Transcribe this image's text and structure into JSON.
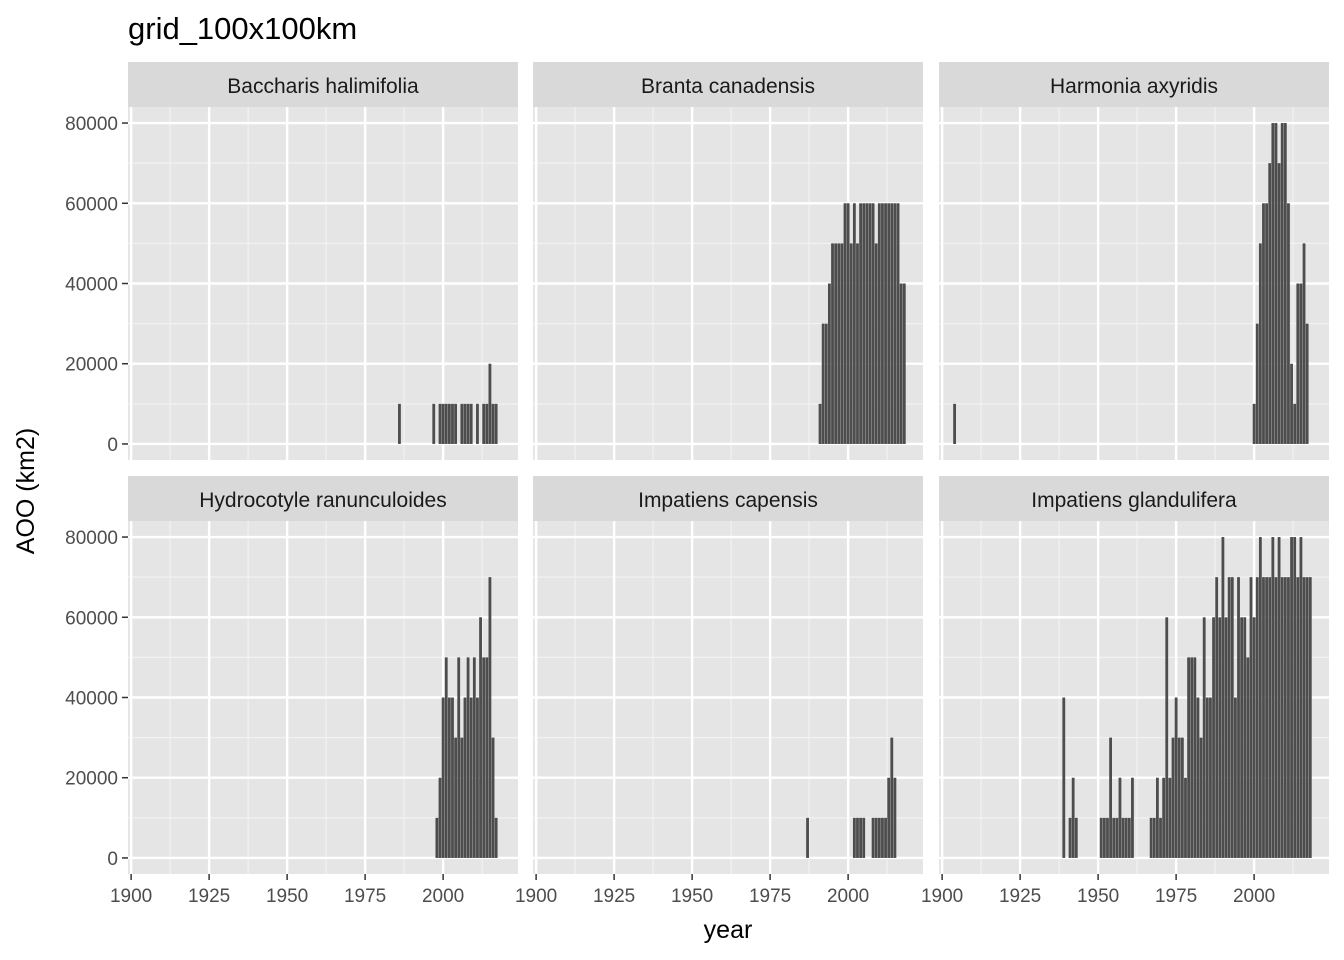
{
  "colors": {
    "panel_background": "#e5e5e5",
    "grid_major": "#ffffff",
    "grid_minor": "#f2f2f2",
    "strip_background": "#d9d9d9",
    "bar_fill": "#4d4d4d",
    "tick_color": "#333333"
  },
  "chart_data": {
    "type": "bar",
    "title": "grid_100x100km",
    "xlabel": "year",
    "ylabel": "AOO (km2)",
    "xlim": [
      1899,
      2024
    ],
    "ylim": [
      -4000,
      84000
    ],
    "x_ticks": [
      1900,
      1925,
      1950,
      1975,
      2000
    ],
    "y_ticks": [
      0,
      20000,
      40000,
      60000,
      80000
    ],
    "grid": true,
    "layout": "facet 2 rows x 3 columns",
    "panels": [
      {
        "name": "Baccharis halimifolia",
        "points": [
          [
            1986,
            10000
          ],
          [
            1997,
            10000
          ],
          [
            1999,
            10000
          ],
          [
            2000,
            10000
          ],
          [
            2001,
            10000
          ],
          [
            2002,
            10000
          ],
          [
            2003,
            10000
          ],
          [
            2004,
            10000
          ],
          [
            2006,
            10000
          ],
          [
            2007,
            10000
          ],
          [
            2008,
            10000
          ],
          [
            2009,
            10000
          ],
          [
            2011,
            10000
          ],
          [
            2013,
            10000
          ],
          [
            2014,
            10000
          ],
          [
            2015,
            20000
          ],
          [
            2016,
            10000
          ],
          [
            2017,
            10000
          ]
        ]
      },
      {
        "name": "Branta canadensis",
        "points": [
          [
            1991,
            10000
          ],
          [
            1992,
            30000
          ],
          [
            1993,
            30000
          ],
          [
            1994,
            40000
          ],
          [
            1995,
            50000
          ],
          [
            1996,
            50000
          ],
          [
            1997,
            50000
          ],
          [
            1998,
            50000
          ],
          [
            1999,
            60000
          ],
          [
            2000,
            60000
          ],
          [
            2001,
            50000
          ],
          [
            2002,
            60000
          ],
          [
            2003,
            50000
          ],
          [
            2004,
            60000
          ],
          [
            2005,
            60000
          ],
          [
            2006,
            60000
          ],
          [
            2007,
            60000
          ],
          [
            2008,
            60000
          ],
          [
            2009,
            50000
          ],
          [
            2010,
            60000
          ],
          [
            2011,
            60000
          ],
          [
            2012,
            60000
          ],
          [
            2013,
            60000
          ],
          [
            2014,
            60000
          ],
          [
            2015,
            60000
          ],
          [
            2016,
            60000
          ],
          [
            2017,
            40000
          ],
          [
            2018,
            40000
          ]
        ]
      },
      {
        "name": "Harmonia axyridis",
        "points": [
          [
            1904,
            10000
          ],
          [
            2000,
            10000
          ],
          [
            2001,
            30000
          ],
          [
            2002,
            50000
          ],
          [
            2003,
            60000
          ],
          [
            2004,
            60000
          ],
          [
            2005,
            70000
          ],
          [
            2006,
            80000
          ],
          [
            2007,
            80000
          ],
          [
            2008,
            70000
          ],
          [
            2009,
            80000
          ],
          [
            2010,
            80000
          ],
          [
            2011,
            60000
          ],
          [
            2012,
            20000
          ],
          [
            2013,
            10000
          ],
          [
            2014,
            40000
          ],
          [
            2015,
            40000
          ],
          [
            2016,
            50000
          ],
          [
            2017,
            30000
          ]
        ]
      },
      {
        "name": "Hydrocotyle ranunculoides",
        "points": [
          [
            1998,
            10000
          ],
          [
            1999,
            20000
          ],
          [
            2000,
            40000
          ],
          [
            2001,
            50000
          ],
          [
            2002,
            40000
          ],
          [
            2003,
            40000
          ],
          [
            2004,
            30000
          ],
          [
            2005,
            50000
          ],
          [
            2006,
            30000
          ],
          [
            2007,
            40000
          ],
          [
            2008,
            50000
          ],
          [
            2009,
            40000
          ],
          [
            2010,
            50000
          ],
          [
            2011,
            40000
          ],
          [
            2012,
            60000
          ],
          [
            2013,
            50000
          ],
          [
            2014,
            50000
          ],
          [
            2015,
            70000
          ],
          [
            2016,
            30000
          ],
          [
            2017,
            10000
          ]
        ]
      },
      {
        "name": "Impatiens capensis",
        "points": [
          [
            1987,
            10000
          ],
          [
            2002,
            10000
          ],
          [
            2003,
            10000
          ],
          [
            2004,
            10000
          ],
          [
            2005,
            10000
          ],
          [
            2008,
            10000
          ],
          [
            2009,
            10000
          ],
          [
            2010,
            10000
          ],
          [
            2011,
            10000
          ],
          [
            2012,
            10000
          ],
          [
            2013,
            20000
          ],
          [
            2014,
            30000
          ],
          [
            2015,
            20000
          ]
        ]
      },
      {
        "name": "Impatiens glandulifera",
        "points": [
          [
            1939,
            40000
          ],
          [
            1941,
            10000
          ],
          [
            1942,
            20000
          ],
          [
            1943,
            10000
          ],
          [
            1951,
            10000
          ],
          [
            1952,
            10000
          ],
          [
            1953,
            10000
          ],
          [
            1954,
            30000
          ],
          [
            1955,
            10000
          ],
          [
            1956,
            10000
          ],
          [
            1957,
            20000
          ],
          [
            1958,
            10000
          ],
          [
            1959,
            10000
          ],
          [
            1960,
            10000
          ],
          [
            1961,
            20000
          ],
          [
            1967,
            10000
          ],
          [
            1968,
            10000
          ],
          [
            1969,
            20000
          ],
          [
            1970,
            10000
          ],
          [
            1971,
            20000
          ],
          [
            1972,
            60000
          ],
          [
            1973,
            20000
          ],
          [
            1974,
            30000
          ],
          [
            1975,
            40000
          ],
          [
            1976,
            30000
          ],
          [
            1977,
            30000
          ],
          [
            1978,
            20000
          ],
          [
            1979,
            50000
          ],
          [
            1980,
            50000
          ],
          [
            1981,
            50000
          ],
          [
            1982,
            40000
          ],
          [
            1983,
            30000
          ],
          [
            1984,
            60000
          ],
          [
            1985,
            40000
          ],
          [
            1986,
            40000
          ],
          [
            1987,
            60000
          ],
          [
            1988,
            70000
          ],
          [
            1989,
            60000
          ],
          [
            1990,
            80000
          ],
          [
            1991,
            60000
          ],
          [
            1992,
            70000
          ],
          [
            1993,
            70000
          ],
          [
            1994,
            40000
          ],
          [
            1995,
            70000
          ],
          [
            1996,
            60000
          ],
          [
            1997,
            60000
          ],
          [
            1998,
            50000
          ],
          [
            1999,
            70000
          ],
          [
            2000,
            60000
          ],
          [
            2001,
            70000
          ],
          [
            2002,
            80000
          ],
          [
            2003,
            70000
          ],
          [
            2004,
            70000
          ],
          [
            2005,
            70000
          ],
          [
            2006,
            80000
          ],
          [
            2007,
            70000
          ],
          [
            2008,
            80000
          ],
          [
            2009,
            70000
          ],
          [
            2010,
            70000
          ],
          [
            2011,
            70000
          ],
          [
            2012,
            80000
          ],
          [
            2013,
            80000
          ],
          [
            2014,
            70000
          ],
          [
            2015,
            80000
          ],
          [
            2016,
            70000
          ],
          [
            2017,
            70000
          ],
          [
            2018,
            70000
          ]
        ]
      }
    ]
  }
}
